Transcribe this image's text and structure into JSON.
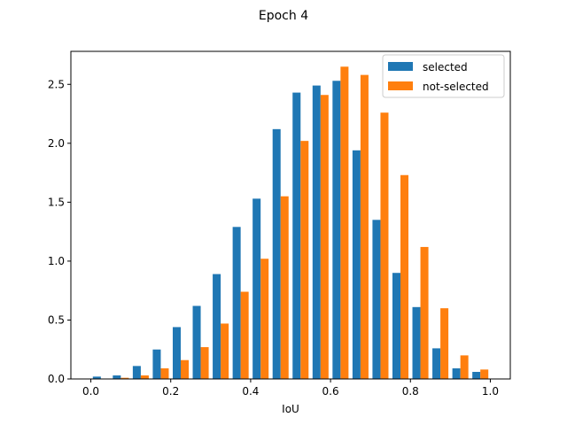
{
  "chart_data": {
    "type": "bar",
    "title": "Epoch 4",
    "xlabel": "IoU",
    "ylabel": "",
    "xlim": [
      -0.05,
      1.05
    ],
    "ylim": [
      0,
      2.78
    ],
    "xticks": [
      0.0,
      0.2,
      0.4,
      0.6,
      0.8,
      1.0
    ],
    "xtick_labels": [
      "0.0",
      "0.2",
      "0.4",
      "0.6",
      "0.8",
      "1.0"
    ],
    "yticks": [
      0.0,
      0.5,
      1.0,
      1.5,
      2.0,
      2.5
    ],
    "ytick_labels": [
      "0.0",
      "0.5",
      "1.0",
      "1.5",
      "2.0",
      "2.5"
    ],
    "bin_edges": [
      0.0,
      0.05,
      0.1,
      0.15,
      0.2,
      0.25,
      0.3,
      0.35,
      0.4,
      0.45,
      0.5,
      0.55,
      0.6,
      0.65,
      0.7,
      0.75,
      0.8,
      0.85,
      0.9,
      0.95,
      1.0
    ],
    "legend_position": "top-right",
    "grid": false,
    "series": [
      {
        "name": "selected",
        "color": "#1f77b4",
        "values": [
          0.02,
          0.03,
          0.11,
          0.25,
          0.44,
          0.62,
          0.89,
          1.29,
          1.53,
          2.12,
          2.43,
          2.49,
          2.53,
          1.94,
          1.35,
          0.9,
          0.61,
          0.26,
          0.09,
          0.06
        ]
      },
      {
        "name": "not-selected",
        "color": "#ff7f0e",
        "values": [
          0.0,
          0.01,
          0.03,
          0.09,
          0.16,
          0.27,
          0.47,
          0.74,
          1.02,
          1.55,
          2.02,
          2.41,
          2.65,
          2.58,
          2.26,
          1.73,
          1.12,
          0.6,
          0.2,
          0.08
        ]
      }
    ]
  }
}
